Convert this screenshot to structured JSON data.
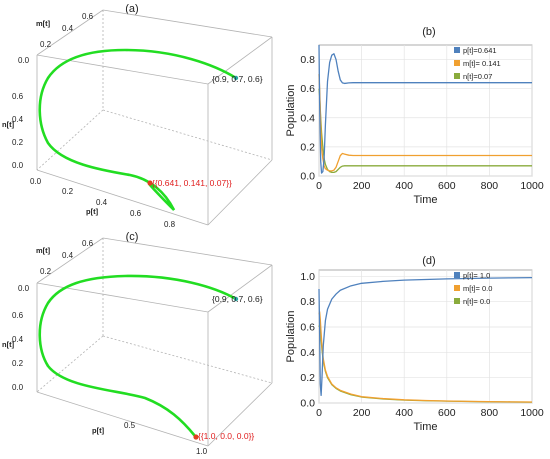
{
  "panels": {
    "a": "(a)",
    "b": "(b)",
    "c": "(c)",
    "d": "(d)"
  },
  "colors": {
    "p": "#4f81bd",
    "m": "#f0a030",
    "n": "#8aab3c",
    "trajectory": "#22dd22",
    "equilibrium": "#e04020",
    "start_point": "#2aa7a0"
  },
  "plot3d": [
    {
      "axes": {
        "m": "m[t]",
        "n": "n[t]",
        "p": "p[t]"
      },
      "m_ticks": [
        "0.0",
        "0.2",
        "0.4",
        "0.6"
      ],
      "n_ticks": [
        "0.0",
        "0.2",
        "0.4",
        "0.6"
      ],
      "p_ticks": [
        "0.0",
        "0.2",
        "0.4",
        "0.6",
        "0.8"
      ],
      "start_label": "{0.9, 0.7, 0.6}",
      "end_label": "{{0.641, 0.141, 0.07}}"
    },
    {
      "axes": {
        "m": "m[t]",
        "n": "n[t]",
        "p": "p[t]"
      },
      "m_ticks": [
        "0.0",
        "0.2",
        "0.4",
        "0.6"
      ],
      "n_ticks": [
        "0.0",
        "0.2",
        "0.4",
        "0.6"
      ],
      "p_ticks": [
        "0.5",
        "1.0"
      ],
      "start_label": "{0.9, 0.7, 0.6}",
      "end_label": "{{1.0, 0.0, 0.0}}"
    }
  ],
  "chart_data": [
    {
      "type": "line",
      "panel": "(b)",
      "xlabel": "Time",
      "ylabel": "Population",
      "xlim": [
        0,
        1000
      ],
      "ylim": [
        0,
        0.9
      ],
      "xticks": [
        0,
        200,
        400,
        600,
        800,
        1000
      ],
      "yticks": [
        0.0,
        0.2,
        0.4,
        0.6,
        0.8
      ],
      "grid": true,
      "legend_position": "top-right",
      "series": [
        {
          "name": "p[t]=0.641",
          "key": "p",
          "x": [
            0,
            3,
            8,
            12,
            18,
            24,
            30,
            40,
            50,
            60,
            70,
            80,
            90,
            100,
            110,
            120,
            140,
            160,
            200,
            400,
            600,
            800,
            1000
          ],
          "y": [
            0.9,
            0.5,
            0.1,
            0.02,
            0.03,
            0.12,
            0.35,
            0.65,
            0.78,
            0.83,
            0.84,
            0.8,
            0.72,
            0.66,
            0.64,
            0.636,
            0.64,
            0.641,
            0.641,
            0.641,
            0.641,
            0.641,
            0.641
          ]
        },
        {
          "name": "m[t]= 0.141",
          "key": "m",
          "x": [
            0,
            3,
            8,
            12,
            18,
            24,
            30,
            40,
            50,
            60,
            70,
            80,
            90,
            100,
            110,
            120,
            140,
            160,
            200,
            400,
            600,
            800,
            1000
          ],
          "y": [
            0.7,
            0.6,
            0.35,
            0.2,
            0.12,
            0.07,
            0.05,
            0.04,
            0.035,
            0.035,
            0.04,
            0.06,
            0.1,
            0.14,
            0.155,
            0.15,
            0.143,
            0.141,
            0.141,
            0.141,
            0.141,
            0.141,
            0.141
          ]
        },
        {
          "name": "n[t]=0.07",
          "key": "n",
          "x": [
            0,
            3,
            8,
            12,
            18,
            24,
            30,
            40,
            50,
            60,
            70,
            80,
            90,
            100,
            110,
            120,
            140,
            160,
            200,
            400,
            600,
            800,
            1000
          ],
          "y": [
            0.6,
            0.55,
            0.4,
            0.3,
            0.2,
            0.12,
            0.08,
            0.045,
            0.03,
            0.025,
            0.025,
            0.03,
            0.045,
            0.06,
            0.068,
            0.07,
            0.07,
            0.07,
            0.07,
            0.07,
            0.07,
            0.07,
            0.07
          ]
        }
      ]
    },
    {
      "type": "line",
      "panel": "(d)",
      "xlabel": "Time",
      "ylabel": "Population",
      "xlim": [
        0,
        1000
      ],
      "ylim": [
        0,
        1.05
      ],
      "xticks": [
        0,
        200,
        400,
        600,
        800,
        1000
      ],
      "yticks": [
        0.0,
        0.2,
        0.4,
        0.6,
        0.8,
        1.0
      ],
      "grid": true,
      "legend_position": "top-right",
      "series": [
        {
          "name": "p[t]= 1.0",
          "key": "p",
          "x": [
            0,
            3,
            6,
            10,
            14,
            20,
            30,
            40,
            60,
            80,
            100,
            150,
            200,
            300,
            400,
            500,
            600,
            700,
            800,
            900,
            1000
          ],
          "y": [
            0.9,
            0.55,
            0.15,
            0.06,
            0.2,
            0.45,
            0.65,
            0.74,
            0.82,
            0.86,
            0.89,
            0.925,
            0.945,
            0.96,
            0.97,
            0.975,
            0.98,
            0.983,
            0.986,
            0.988,
            0.99
          ]
        },
        {
          "name": "m[t]= 0.0",
          "key": "m",
          "x": [
            0,
            3,
            6,
            10,
            14,
            20,
            30,
            40,
            60,
            80,
            100,
            150,
            200,
            300,
            400,
            500,
            600,
            700,
            800,
            900,
            1000
          ],
          "y": [
            0.7,
            0.72,
            0.66,
            0.55,
            0.45,
            0.35,
            0.26,
            0.21,
            0.15,
            0.12,
            0.1,
            0.07,
            0.05,
            0.035,
            0.025,
            0.02,
            0.016,
            0.013,
            0.011,
            0.009,
            0.008
          ]
        },
        {
          "name": "n[t]= 0.0",
          "key": "n",
          "x": [
            0,
            3,
            6,
            10,
            14,
            20,
            30,
            40,
            60,
            80,
            100,
            150,
            200,
            300,
            400,
            500,
            600,
            700,
            800,
            900,
            1000
          ],
          "y": [
            0.6,
            0.62,
            0.6,
            0.5,
            0.42,
            0.33,
            0.25,
            0.2,
            0.145,
            0.115,
            0.095,
            0.065,
            0.047,
            0.032,
            0.023,
            0.018,
            0.015,
            0.012,
            0.01,
            0.008,
            0.007
          ]
        }
      ]
    }
  ]
}
